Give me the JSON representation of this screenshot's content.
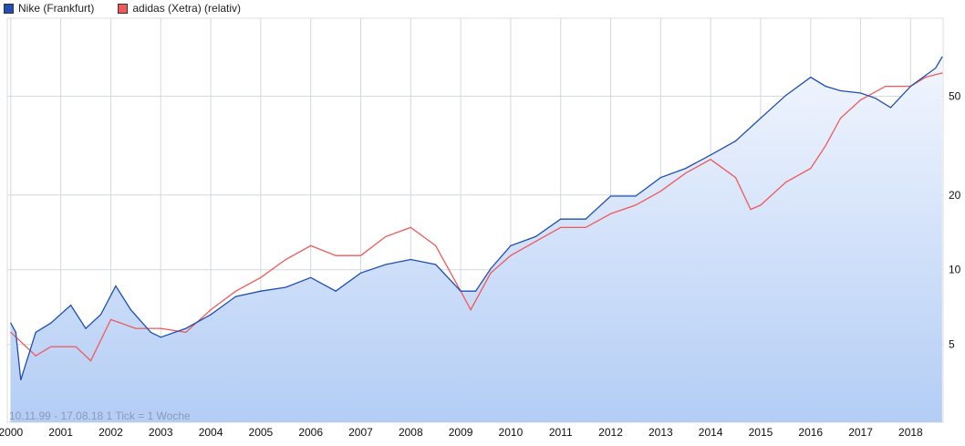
{
  "chart_data": {
    "type": "line",
    "title": "",
    "xlabel": "",
    "ylabel": "",
    "y_scale": "log",
    "xlim": [
      1999.93,
      2018.65
    ],
    "ylim": [
      2.43,
      103
    ],
    "grid": true,
    "legend_position": "top-left",
    "x_ticks": [
      "2000",
      "2001",
      "2002",
      "2003",
      "2004",
      "2005",
      "2006",
      "2007",
      "2008",
      "2009",
      "2010",
      "2011",
      "2012",
      "2013",
      "2014",
      "2015",
      "2016",
      "2017",
      "2018"
    ],
    "y_ticks": [
      5,
      10,
      20,
      50
    ],
    "y_tick_labels": [
      "5",
      "10",
      "20",
      "50"
    ],
    "annotation": "10.11.99 - 17.08.18   1 Tick = 1 Woche",
    "series": [
      {
        "name": "Nike (Frankfurt)",
        "color": "#1f4fb5",
        "filled": true,
        "x": [
          2000.0,
          2000.1,
          2000.2,
          2000.5,
          2000.8,
          2001.2,
          2001.5,
          2001.8,
          2002.1,
          2002.4,
          2002.8,
          2003.0,
          2003.5,
          2004.0,
          2004.5,
          2005.0,
          2005.5,
          2006.0,
          2006.5,
          2007.0,
          2007.5,
          2008.0,
          2008.5,
          2009.0,
          2009.3,
          2009.6,
          2010.0,
          2010.5,
          2011.0,
          2011.5,
          2012.0,
          2012.5,
          2013.0,
          2013.5,
          2014.0,
          2014.5,
          2015.0,
          2015.5,
          2016.0,
          2016.3,
          2016.6,
          2017.0,
          2017.3,
          2017.6,
          2018.0,
          2018.5,
          2018.63
        ],
        "y": [
          6.1,
          5.6,
          3.6,
          5.6,
          6.1,
          7.2,
          5.8,
          6.6,
          8.6,
          6.9,
          5.6,
          5.35,
          5.8,
          6.6,
          7.8,
          8.2,
          8.5,
          9.3,
          8.2,
          9.7,
          10.5,
          11.0,
          10.5,
          8.2,
          8.2,
          10.1,
          12.5,
          13.6,
          16.0,
          16.0,
          19.8,
          19.8,
          23.5,
          25.6,
          29.0,
          33.0,
          40.8,
          50.3,
          59.6,
          54.8,
          52.6,
          51.5,
          49.0,
          45.0,
          54.8,
          64.9,
          71.9
        ]
      },
      {
        "name": "adidas (Xetra) (relativ)",
        "color": "#f0595a",
        "filled": false,
        "x": [
          2000.0,
          2000.5,
          2000.8,
          2001.3,
          2001.6,
          2002.0,
          2002.5,
          2003.0,
          2003.5,
          2004.0,
          2004.5,
          2005.0,
          2005.5,
          2006.0,
          2006.5,
          2007.0,
          2007.5,
          2008.0,
          2008.5,
          2009.0,
          2009.2,
          2009.6,
          2010.0,
          2010.5,
          2011.0,
          2011.5,
          2012.0,
          2012.5,
          2013.0,
          2013.5,
          2014.0,
          2014.5,
          2014.8,
          2015.0,
          2015.5,
          2016.0,
          2016.3,
          2016.6,
          2017.0,
          2017.5,
          2018.0,
          2018.3,
          2018.63
        ],
        "y": [
          5.6,
          4.5,
          4.9,
          4.9,
          4.3,
          6.3,
          5.8,
          5.8,
          5.6,
          6.9,
          8.2,
          9.3,
          11.0,
          12.5,
          11.4,
          11.4,
          13.6,
          14.8,
          12.5,
          8.2,
          6.9,
          9.7,
          11.4,
          13.0,
          14.8,
          14.8,
          16.8,
          18.2,
          20.7,
          24.5,
          27.8,
          23.5,
          17.5,
          18.2,
          22.5,
          25.6,
          31.6,
          40.8,
          48.3,
          54.8,
          54.8,
          59.6,
          62.0
        ]
      }
    ]
  }
}
